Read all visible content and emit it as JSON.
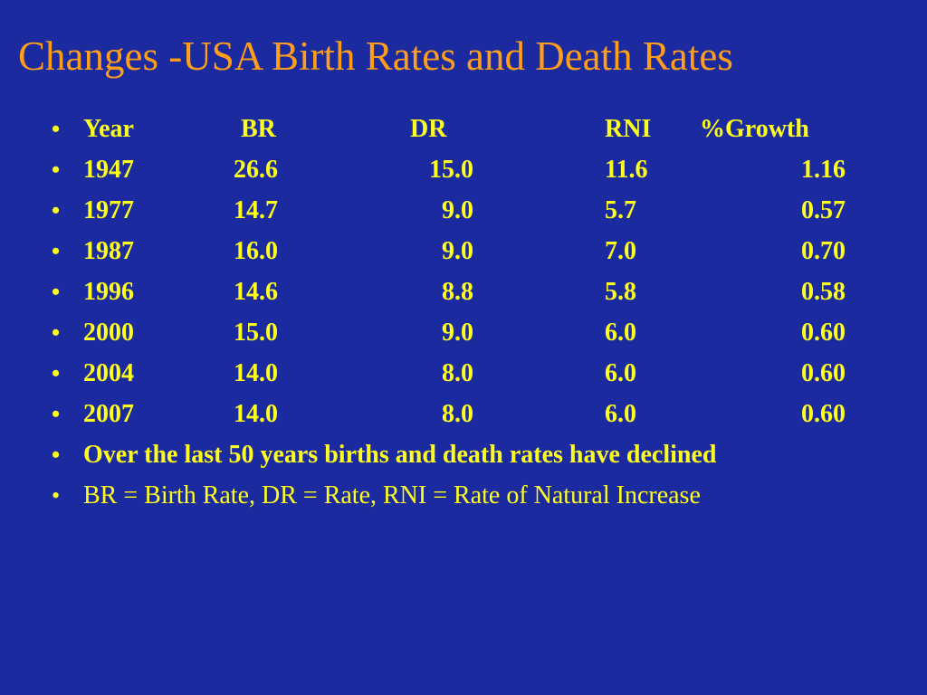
{
  "title": "Changes -USA Birth Rates and Death Rates",
  "bullet_char": "•",
  "header": {
    "year": "Year",
    "br": "BR",
    "dr": "DR",
    "rni": "RNI",
    "growth": "%Growth"
  },
  "rows": [
    {
      "year": "1947",
      "br": "26.6",
      "dr": "15.0",
      "rni": "11.6",
      "growth": "1.16"
    },
    {
      "year": "1977",
      "br": "14.7",
      "dr": "9.0",
      "rni": "5.7",
      "growth": "0.57"
    },
    {
      "year": "1987",
      "br": "16.0",
      "dr": "9.0",
      "rni": "7.0",
      "growth": "0.70"
    },
    {
      "year": "1996",
      "br": "14.6",
      "dr": "8.8",
      "rni": "5.8",
      "growth": "0.58"
    },
    {
      "year": "2000",
      "br": "15.0",
      "dr": "9.0",
      "rni": "6.0",
      "growth": "0.60"
    },
    {
      "year": "2004",
      "br": "14.0",
      "dr": "8.0",
      "rni": "6.0",
      "growth": "0.60"
    },
    {
      "year": "2007",
      "br": "14.0",
      "dr": "8.0",
      "rni": "6.0",
      "growth": "0.60"
    }
  ],
  "summary": "Over the last 50 years births and death rates have declined",
  "legend_note": "BR  = Birth Rate, DR = Rate, RNI = Rate of Natural Increase",
  "colors": {
    "background": "#1b2a9e",
    "title": "#ff9e1a",
    "text": "#ffff1e"
  }
}
